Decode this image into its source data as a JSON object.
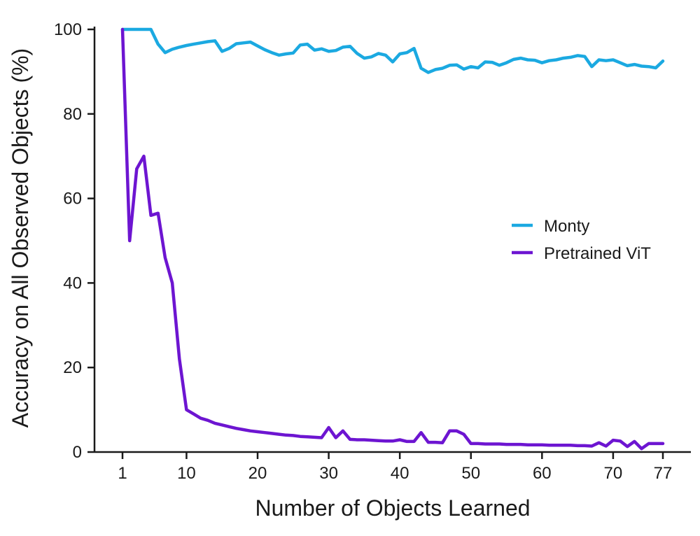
{
  "chart_data": {
    "type": "line",
    "title": "",
    "xlabel": "Number of Objects Learned",
    "ylabel": "Accuracy on All Observed Objects (%)",
    "xlim": [
      1,
      77
    ],
    "ylim": [
      0,
      100
    ],
    "xticks": [
      1,
      10,
      20,
      30,
      40,
      50,
      60,
      70,
      77
    ],
    "yticks": [
      0,
      20,
      40,
      60,
      80,
      100
    ],
    "grid": false,
    "legend_position": "center-right",
    "series": [
      {
        "name": "Monty",
        "color": "#1ba9e1",
        "x": [
          1,
          2,
          3,
          4,
          5,
          6,
          7,
          8,
          9,
          10,
          11,
          12,
          13,
          14,
          15,
          16,
          17,
          18,
          19,
          20,
          21,
          22,
          23,
          24,
          25,
          26,
          27,
          28,
          29,
          30,
          31,
          32,
          33,
          34,
          35,
          36,
          37,
          38,
          39,
          40,
          41,
          42,
          43,
          44,
          45,
          46,
          47,
          48,
          49,
          50,
          51,
          52,
          53,
          54,
          55,
          56,
          57,
          58,
          59,
          60,
          61,
          62,
          63,
          64,
          65,
          66,
          67,
          68,
          69,
          70,
          71,
          72,
          73,
          74,
          75,
          76,
          77
        ],
        "values": [
          100,
          100,
          100,
          100,
          100,
          96.5,
          94.5,
          95.3,
          95.8,
          96.2,
          96.5,
          96.8,
          97.1,
          97.3,
          94.8,
          95.5,
          96.6,
          96.8,
          97,
          96.1,
          95.2,
          94.5,
          93.9,
          94.2,
          94.4,
          96.3,
          96.5,
          95.1,
          95.4,
          94.8,
          95,
          95.8,
          96,
          94.3,
          93.2,
          93.5,
          94.3,
          93.9,
          92.3,
          94.2,
          94.5,
          95.5,
          90.8,
          89.8,
          90.5,
          90.8,
          91.5,
          91.6,
          90.6,
          91.2,
          90.9,
          92.3,
          92.2,
          91.5,
          92.1,
          92.9,
          93.2,
          92.8,
          92.7,
          92.1,
          92.6,
          92.8,
          93.2,
          93.4,
          93.8,
          93.6,
          91.2,
          92.8,
          92.6,
          92.8,
          92.1,
          91.4,
          91.7,
          91.3,
          91.2,
          90.9,
          92.5
        ]
      },
      {
        "name": "Pretrained ViT",
        "color": "#6d15d1",
        "x": [
          1,
          2,
          3,
          4,
          5,
          6,
          7,
          8,
          9,
          10,
          11,
          12,
          13,
          14,
          15,
          16,
          17,
          18,
          19,
          20,
          21,
          22,
          23,
          24,
          25,
          26,
          27,
          28,
          29,
          30,
          31,
          32,
          33,
          34,
          35,
          36,
          37,
          38,
          39,
          40,
          41,
          42,
          43,
          44,
          45,
          46,
          47,
          48,
          49,
          50,
          51,
          52,
          53,
          54,
          55,
          56,
          57,
          58,
          59,
          60,
          61,
          62,
          63,
          64,
          65,
          66,
          67,
          68,
          69,
          70,
          71,
          72,
          73,
          74,
          75,
          76,
          77
        ],
        "values": [
          100,
          50,
          67,
          70,
          56,
          56.5,
          46,
          40,
          22,
          10,
          9,
          8,
          7.5,
          6.8,
          6.4,
          6,
          5.6,
          5.3,
          5,
          4.8,
          4.6,
          4.4,
          4.2,
          4,
          3.9,
          3.7,
          3.6,
          3.5,
          3.4,
          5.8,
          3.4,
          5,
          3,
          2.9,
          2.9,
          2.8,
          2.7,
          2.6,
          2.6,
          2.9,
          2.5,
          2.5,
          4.6,
          2.3,
          2.3,
          2.2,
          5,
          5,
          4.2,
          2,
          2,
          1.9,
          1.9,
          1.9,
          1.8,
          1.8,
          1.8,
          1.7,
          1.7,
          1.7,
          1.6,
          1.6,
          1.6,
          1.6,
          1.5,
          1.5,
          1.4,
          2.2,
          1.4,
          2.8,
          2.6,
          1.3,
          2.5,
          0.8,
          2,
          2,
          2
        ]
      }
    ]
  }
}
